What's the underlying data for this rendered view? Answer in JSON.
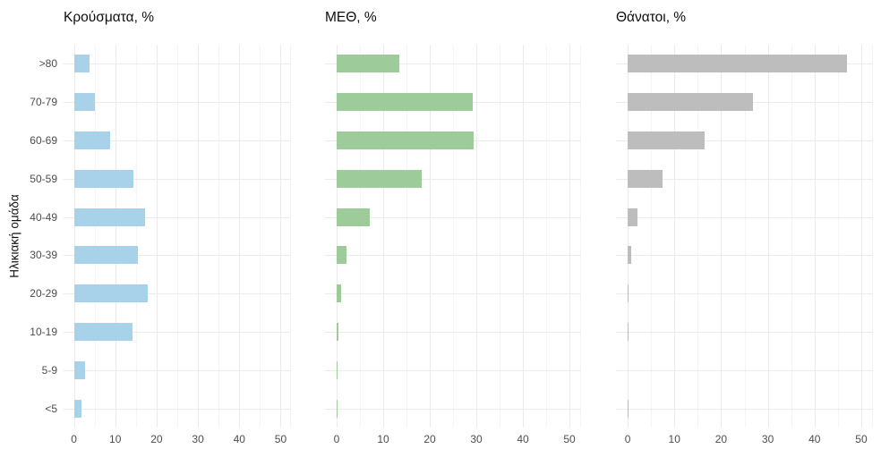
{
  "chart_data": {
    "type": "bar",
    "orientation": "horizontal",
    "layout": "three side-by-side facet panels sharing one categorical y-axis, white background, light gray grid, no axis lines",
    "ylabel": "Ηλικιακή ομάδα",
    "categories": [
      ">80",
      "70-79",
      "60-69",
      "50-59",
      "40-49",
      "30-39",
      "20-29",
      "10-19",
      "5-9",
      "<5"
    ],
    "x_ticks": [
      0,
      10,
      20,
      30,
      40,
      50
    ],
    "x_minor_ticks": [
      5,
      15,
      25,
      35,
      45
    ],
    "xlim": [
      0,
      50
    ],
    "grid": true,
    "series": [
      {
        "name": "Κρούσματα, %",
        "color": "#a7d2e9",
        "values": [
          3.8,
          5.0,
          8.8,
          14.4,
          17.2,
          15.5,
          17.9,
          14.1,
          2.8,
          1.8
        ]
      },
      {
        "name": "ΜΕΘ, %",
        "color": "#9dcb99",
        "values": [
          13.4,
          29.3,
          29.5,
          18.2,
          7.1,
          2.2,
          0.9,
          0.3,
          0.1,
          0.2
        ]
      },
      {
        "name": "Θάνατοι, %",
        "color": "#bdbdbd",
        "values": [
          47.0,
          26.9,
          16.5,
          7.4,
          2.1,
          0.8,
          0.2,
          0.2,
          0.0,
          0.1
        ]
      }
    ],
    "axis_text_color": "#4d4d4d",
    "grid_major_color": "#ebebeb",
    "grid_minor_color": "#f4f4f4"
  }
}
